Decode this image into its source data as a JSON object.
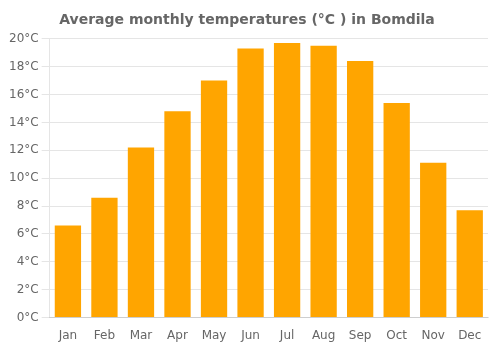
{
  "chart_data": {
    "type": "bar",
    "title": "Average monthly temperatures (°C ) in Bomdila",
    "categories": [
      "Jan",
      "Feb",
      "Mar",
      "Apr",
      "May",
      "Jun",
      "Jul",
      "Aug",
      "Sep",
      "Oct",
      "Nov",
      "Dec"
    ],
    "values": [
      6.6,
      8.6,
      12.2,
      14.8,
      17.0,
      19.3,
      19.7,
      19.5,
      18.4,
      15.4,
      11.1,
      7.7
    ],
    "color": "#FFA500",
    "ylim": [
      0,
      20
    ],
    "yticks": [
      {
        "value": 0,
        "label": "0°C"
      },
      {
        "value": 2,
        "label": "2°C"
      },
      {
        "value": 4,
        "label": "4°C"
      },
      {
        "value": 6,
        "label": "6°C"
      },
      {
        "value": 8,
        "label": "8°C"
      },
      {
        "value": 10,
        "label": "10°C"
      },
      {
        "value": 12,
        "label": "12°C"
      },
      {
        "value": 14,
        "label": "14°C"
      },
      {
        "value": 16,
        "label": "16°C"
      },
      {
        "value": 18,
        "label": "18°C"
      },
      {
        "value": 20,
        "label": "20°C"
      }
    ],
    "grid": true
  }
}
